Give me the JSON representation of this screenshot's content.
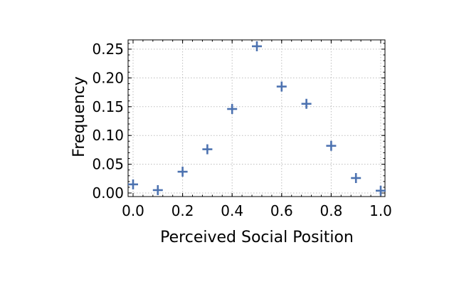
{
  "chart_data": {
    "type": "scatter",
    "title": "",
    "xlabel": "Perceived Social Position",
    "ylabel": "Frequency",
    "xlim": [
      0.0,
      1.0
    ],
    "ylim": [
      -0.005,
      0.265
    ],
    "x_ticks": [
      0.0,
      0.2,
      0.4,
      0.6,
      0.8,
      1.0
    ],
    "x_tick_labels": [
      "0.0",
      "0.2",
      "0.4",
      "0.6",
      "0.8",
      "1.0"
    ],
    "y_ticks": [
      0.0,
      0.05,
      0.1,
      0.15,
      0.2,
      0.25
    ],
    "y_tick_labels": [
      "0.00",
      "0.05",
      "0.10",
      "0.15",
      "0.20",
      "0.25"
    ],
    "grid": true,
    "marker": "plus",
    "color": "#4c72b0",
    "series": [
      {
        "x": [
          0.0,
          0.1,
          0.2,
          0.3,
          0.4,
          0.5,
          0.6,
          0.7,
          0.8,
          0.9,
          1.0
        ],
        "y": [
          0.015,
          0.005,
          0.037,
          0.076,
          0.146,
          0.255,
          0.185,
          0.155,
          0.082,
          0.026,
          0.004
        ]
      }
    ]
  }
}
